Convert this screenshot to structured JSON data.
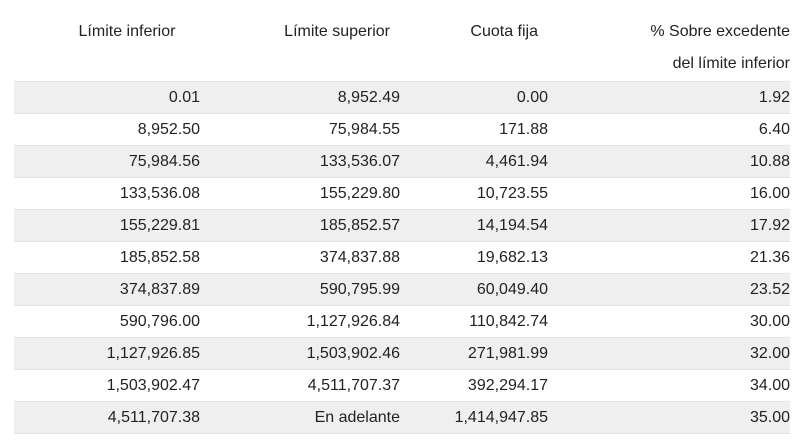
{
  "table": {
    "headers": [
      [
        "Límite inferior"
      ],
      [
        "Límite superior"
      ],
      [
        "Cuota fija"
      ],
      [
        "% Sobre excedente",
        "del límite inferior"
      ]
    ],
    "rows": [
      [
        "0.01",
        "8,952.49",
        "0.00",
        "1.92"
      ],
      [
        "8,952.50",
        "75,984.55",
        "171.88",
        "6.40"
      ],
      [
        "75,984.56",
        "133,536.07",
        "4,461.94",
        "10.88"
      ],
      [
        "133,536.08",
        "155,229.80",
        "10,723.55",
        "16.00"
      ],
      [
        "155,229.81",
        "185,852.57",
        "14,194.54",
        "17.92"
      ],
      [
        "185,852.58",
        "374,837.88",
        "19,682.13",
        "21.36"
      ],
      [
        "374,837.89",
        "590,795.99",
        "60,049.40",
        "23.52"
      ],
      [
        "590,796.00",
        "1,127,926.84",
        "110,842.74",
        "30.00"
      ],
      [
        "1,127,926.85",
        "1,503,902.46",
        "271,981.99",
        "32.00"
      ],
      [
        "1,503,902.47",
        "4,511,707.37",
        "392,294.17",
        "34.00"
      ],
      [
        "4,511,707.38",
        "En adelante",
        "1,414,947.85",
        "35.00"
      ]
    ]
  }
}
